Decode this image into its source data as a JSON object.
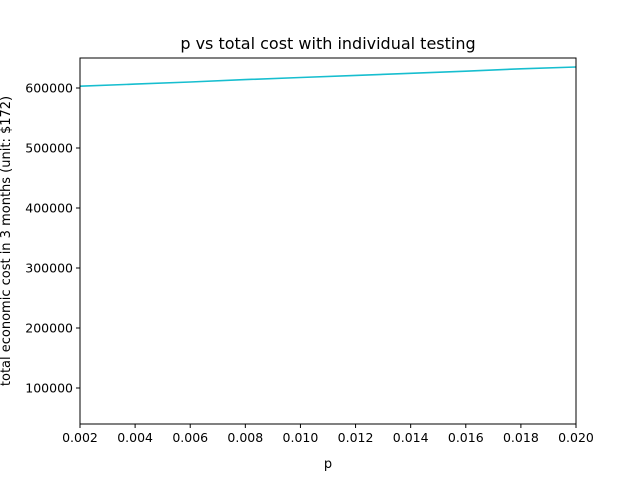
{
  "chart_data": {
    "type": "line",
    "title": "p vs total cost with individual testing",
    "xlabel": "p",
    "ylabel": "total economic cost in 3 months (unit: $172)",
    "xlim": [
      0.002,
      0.02
    ],
    "ylim": [
      40000,
      650000
    ],
    "xticks": [
      "0.002",
      "0.004",
      "0.006",
      "0.008",
      "0.010",
      "0.012",
      "0.014",
      "0.016",
      "0.018",
      "0.020"
    ],
    "xtick_values": [
      0.002,
      0.004,
      0.006,
      0.008,
      0.01,
      0.012,
      0.014,
      0.016,
      0.018,
      0.02
    ],
    "yticks": [
      "100000",
      "200000",
      "300000",
      "400000",
      "500000",
      "600000"
    ],
    "ytick_values": [
      100000,
      200000,
      300000,
      400000,
      500000,
      600000
    ],
    "grid": false,
    "series": [
      {
        "color": "#17becf",
        "x": [
          0.002,
          0.004,
          0.006,
          0.008,
          0.01,
          0.012,
          0.014,
          0.016,
          0.018,
          0.02
        ],
        "y": [
          603000,
          606500,
          610000,
          614000,
          617500,
          621000,
          624500,
          628000,
          632000,
          635000
        ]
      }
    ]
  }
}
